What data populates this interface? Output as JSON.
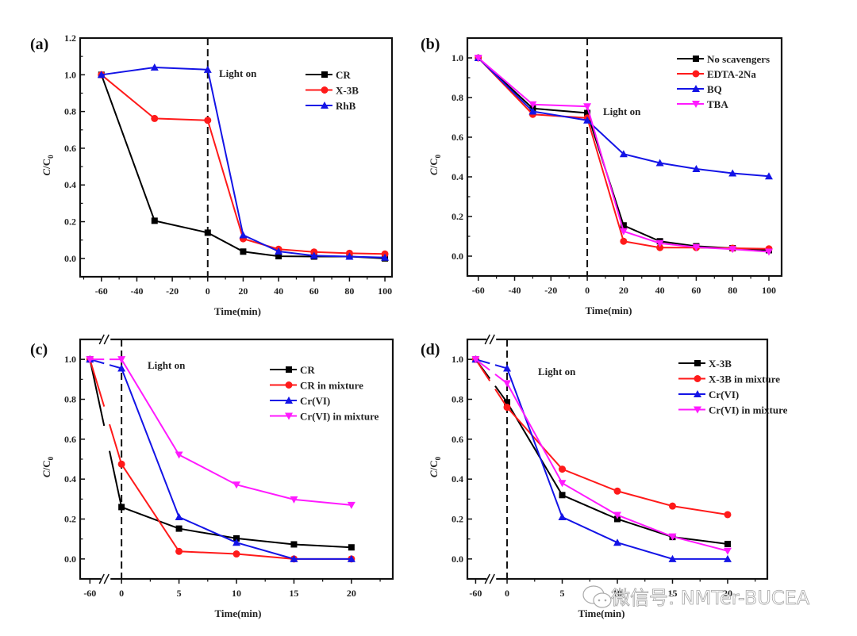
{
  "watermark": "微信号: NMTer-BUCEA",
  "colors": {
    "black": "#000000",
    "red": "#ff1a1a",
    "blue": "#1414e6",
    "magenta": "#ff1aff"
  },
  "chart_data": [
    {
      "panel": "(a)",
      "type": "line",
      "xlabel": "Time(min)",
      "ylabel": "C/C0",
      "xlim": [
        -72,
        104
      ],
      "ylim": [
        -0.1,
        1.2
      ],
      "xticks": [
        -60,
        -40,
        -20,
        0,
        20,
        40,
        60,
        80,
        100
      ],
      "yticks": [
        0.0,
        0.2,
        0.4,
        0.6,
        0.8,
        1.0,
        1.2
      ],
      "x_break": false,
      "annotation": {
        "text": "Light on",
        "x": 0
      },
      "legend_position": "top-right",
      "x": [
        -60,
        -30,
        0,
        20,
        40,
        60,
        80,
        100
      ],
      "series": [
        {
          "name": "CR",
          "color": "#000000",
          "marker": "square",
          "values": [
            1.0,
            0.205,
            0.14,
            0.037,
            0.012,
            0.01,
            0.01,
            0.0
          ]
        },
        {
          "name": "X-3B",
          "color": "#ff1a1a",
          "marker": "circle",
          "values": [
            1.0,
            0.762,
            0.752,
            0.107,
            0.05,
            0.035,
            0.028,
            0.024
          ]
        },
        {
          "name": "RhB",
          "color": "#1414e6",
          "marker": "triangle-up",
          "values": [
            1.0,
            1.04,
            1.028,
            0.127,
            0.038,
            0.015,
            0.01,
            0.005
          ]
        }
      ]
    },
    {
      "panel": "(b)",
      "type": "line",
      "xlabel": "Time(min)",
      "ylabel": "C/C0",
      "xlim": [
        -66,
        107
      ],
      "ylim": [
        -0.1,
        1.1
      ],
      "xticks": [
        -60,
        -40,
        -20,
        0,
        20,
        40,
        60,
        80,
        100
      ],
      "yticks": [
        0.0,
        0.2,
        0.4,
        0.6,
        0.8,
        1.0
      ],
      "x_break": false,
      "annotation": {
        "text": "Light on",
        "x": 0
      },
      "legend_position": "top-right",
      "x": [
        -60,
        -30,
        0,
        20,
        40,
        60,
        80,
        100
      ],
      "series": [
        {
          "name": "No scavengers",
          "color": "#000000",
          "marker": "square",
          "values": [
            1.0,
            0.745,
            0.722,
            0.155,
            0.075,
            0.05,
            0.04,
            0.03
          ]
        },
        {
          "name": "EDTA-2Na",
          "color": "#ff1a1a",
          "marker": "circle",
          "values": [
            1.0,
            0.715,
            0.697,
            0.075,
            0.043,
            0.043,
            0.04,
            0.037
          ]
        },
        {
          "name": "BQ",
          "color": "#1414e6",
          "marker": "triangle-up",
          "values": [
            1.0,
            0.73,
            0.685,
            0.515,
            0.47,
            0.44,
            0.418,
            0.403
          ]
        },
        {
          "name": "TBA",
          "color": "#ff1aff",
          "marker": "triangle-down",
          "values": [
            1.0,
            0.765,
            0.755,
            0.125,
            0.065,
            0.045,
            0.035,
            0.022
          ]
        }
      ]
    },
    {
      "panel": "(c)",
      "type": "line",
      "xlabel": "Time(min)",
      "ylabel": "C/C0",
      "xlim": [
        -3.6,
        23.6
      ],
      "ylim": [
        -0.1,
        1.1
      ],
      "xticks": [
        -60,
        0,
        5,
        10,
        15,
        20
      ],
      "yticks": [
        0.0,
        0.2,
        0.4,
        0.6,
        0.8,
        1.0
      ],
      "x_break": true,
      "annotation": {
        "text": "Light on",
        "x": 0
      },
      "legend_position": "top-right",
      "x": [
        -60,
        0,
        5,
        10,
        15,
        20
      ],
      "series": [
        {
          "name": "CR",
          "color": "#000000",
          "marker": "square",
          "values": [
            1.0,
            0.26,
            0.152,
            0.103,
            0.073,
            0.058
          ]
        },
        {
          "name": "CR in mixture",
          "color": "#ff1a1a",
          "marker": "circle",
          "values": [
            1.0,
            0.475,
            0.038,
            0.025,
            0.0,
            0.0
          ]
        },
        {
          "name": "Cr(VI)",
          "color": "#1414e6",
          "marker": "triangle-up",
          "values": [
            1.0,
            0.955,
            0.21,
            0.082,
            0.0,
            0.0
          ]
        },
        {
          "name": "Cr(VI) in mixture",
          "color": "#ff1aff",
          "marker": "triangle-down",
          "values": [
            1.0,
            1.0,
            0.522,
            0.372,
            0.298,
            0.27
          ]
        }
      ]
    },
    {
      "panel": "(d)",
      "type": "line",
      "xlabel": "Time(min)",
      "ylabel": "C/C0",
      "xlim": [
        -3.6,
        23.6
      ],
      "ylim": [
        -0.1,
        1.1
      ],
      "xticks": [
        -60,
        0,
        5,
        10,
        15,
        20
      ],
      "yticks": [
        0.0,
        0.2,
        0.4,
        0.6,
        0.8,
        1.0
      ],
      "x_break": true,
      "annotation": {
        "text": "Light on",
        "x": 0
      },
      "legend_position": "top-right",
      "x": [
        -60,
        0,
        5,
        10,
        15,
        20
      ],
      "series": [
        {
          "name": "X-3B",
          "color": "#000000",
          "marker": "square",
          "values": [
            1.0,
            0.785,
            0.32,
            0.2,
            0.11,
            0.075
          ]
        },
        {
          "name": "X-3B in mixture",
          "color": "#ff1a1a",
          "marker": "circle",
          "values": [
            1.0,
            0.76,
            0.45,
            0.34,
            0.265,
            0.222
          ]
        },
        {
          "name": "Cr(VI)",
          "color": "#1414e6",
          "marker": "triangle-up",
          "values": [
            1.0,
            0.955,
            0.21,
            0.082,
            0.0,
            0.0
          ]
        },
        {
          "name": "Cr(VI) in mixture",
          "color": "#ff1aff",
          "marker": "triangle-down",
          "values": [
            1.0,
            0.88,
            0.38,
            0.22,
            0.112,
            0.04
          ]
        }
      ]
    }
  ]
}
